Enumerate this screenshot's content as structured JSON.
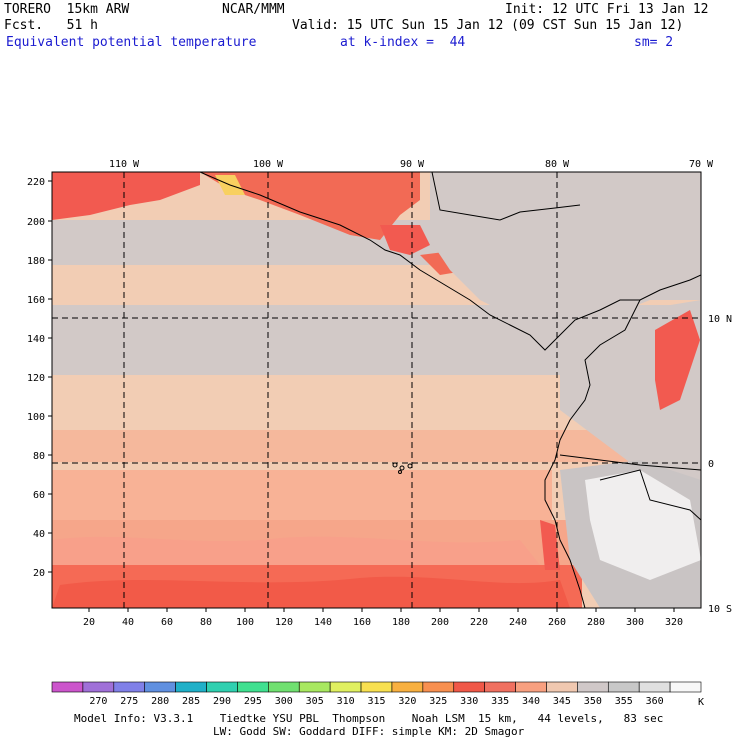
{
  "header": {
    "model": "TORERO  15km ARW",
    "forecast": "Fcst.   51 h",
    "center": "NCAR/MMM",
    "init": "Init: 12 UTC Fri 13 Jan 12",
    "valid": "Valid: 15 UTC Sun 15 Jan 12 (09 CST Sun 15 Jan 12)",
    "field": "Equivalent potential temperature",
    "level": "at k-index =  44",
    "smoothing": "sm= 2"
  },
  "map": {
    "top_lon_labels": [
      "110 W",
      "100 W",
      "90 W",
      "80 W",
      "70 W"
    ],
    "right_lat_labels": [
      "10 N",
      "0",
      "10 S"
    ],
    "y_ticks": [
      "220",
      "200",
      "180",
      "160",
      "140",
      "120",
      "100",
      "80",
      "60",
      "40",
      "20"
    ],
    "x_ticks": [
      "20",
      "40",
      "60",
      "80",
      "100",
      "120",
      "140",
      "160",
      "180",
      "200",
      "220",
      "240",
      "260",
      "280",
      "300",
      "320"
    ]
  },
  "colorbar": {
    "unit": "K",
    "labels": [
      "270",
      "275",
      "280",
      "285",
      "290",
      "295",
      "300",
      "305",
      "310",
      "315",
      "320",
      "325",
      "330",
      "335",
      "340",
      "345",
      "350",
      "355",
      "360"
    ],
    "colors": [
      "#cc55cc",
      "#a070d8",
      "#8080e8",
      "#6090e0",
      "#20b0c8",
      "#30d0b0",
      "#40e090",
      "#70e070",
      "#a8e860",
      "#e0f060",
      "#f8e050",
      "#f8b040",
      "#f89050",
      "#f05848",
      "#f07060",
      "#f8a080",
      "#f0c8b0",
      "#d0c8c8",
      "#c8c8c8",
      "#e0e0e0",
      "#f8f8f8"
    ]
  },
  "footer": {
    "line1": "Model Info: V3.3.1    Tiedtke YSU PBL  Thompson    Noah LSM  15 km,   44 levels,   83 sec",
    "line2": "LW: Godd SW: Goddard DIFF: simple KM: 2D Smagor"
  }
}
